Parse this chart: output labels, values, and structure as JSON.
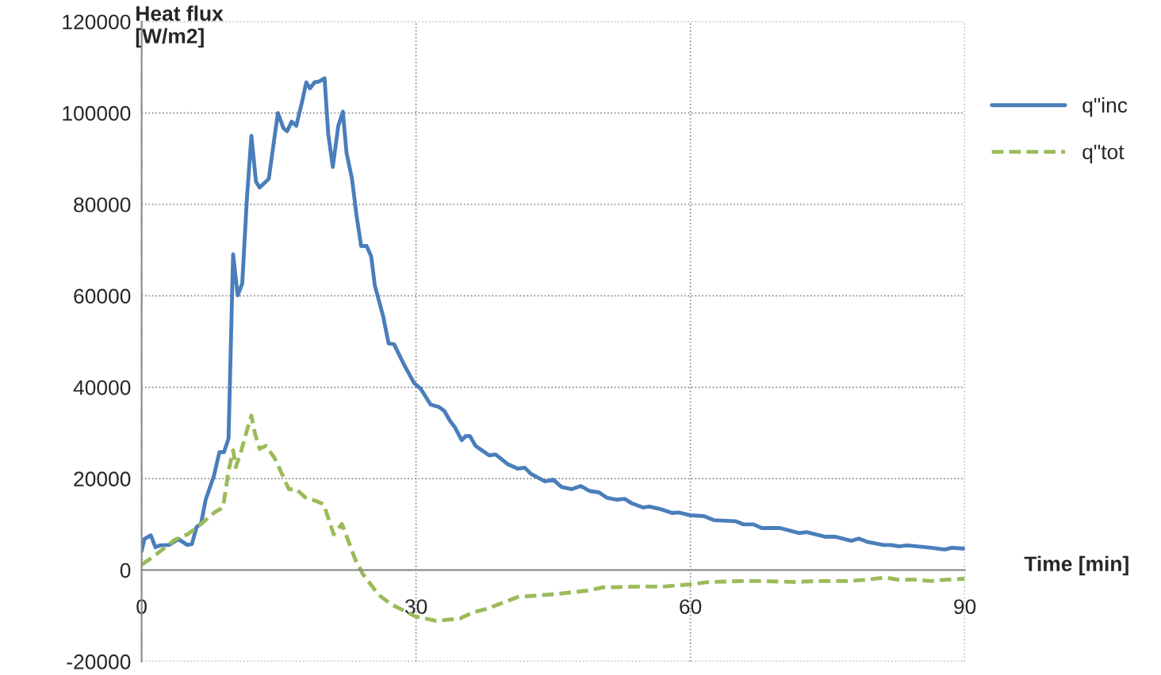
{
  "chart_data": {
    "type": "line",
    "xlabel": "Time [min]",
    "ylabel": "Heat flux\n[W/m2]",
    "xlim": [
      0,
      90
    ],
    "xticks": [
      0,
      30,
      60,
      90
    ],
    "ylim": [
      -20000,
      120000
    ],
    "yticks": [
      -20000,
      0,
      20000,
      40000,
      60000,
      80000,
      100000,
      120000
    ],
    "grid": true,
    "legend": "right",
    "marker": "none",
    "series": [
      {
        "name": "q\"inc",
        "color": "#4a7ebb",
        "line_style": "solid",
        "x": [
          0,
          0.3,
          1.0,
          1.5,
          2.0,
          3.0,
          4.0,
          5.0,
          5.5,
          6.0,
          6.5,
          7.0,
          7.9,
          8.5,
          9.0,
          9.5,
          10.0,
          10.5,
          11.0,
          11.5,
          12.0,
          12.5,
          12.9,
          13.9,
          14.5,
          14.9,
          15.5,
          15.9,
          16.4,
          16.9,
          17.5,
          18.0,
          18.4,
          18.9,
          19.4,
          20.0,
          20.4,
          20.9,
          21.5,
          22.0,
          22.4,
          23.0,
          23.5,
          24.0,
          24.6,
          25.1,
          25.5,
          26.4,
          27.0,
          27.6,
          28.7,
          29.8,
          30.5,
          31.6,
          32.5,
          33.1,
          33.7,
          34.2,
          35.0,
          35.4,
          35.9,
          36.5,
          38.0,
          38.7,
          40.0,
          41.1,
          41.9,
          42.6,
          44.1,
          45.0,
          45.9,
          47.0,
          48.0,
          49.0,
          50.0,
          50.9,
          51.9,
          52.8,
          53.6,
          54.8,
          55.5,
          56.8,
          58.0,
          58.7,
          60.0,
          61.5,
          62.6,
          64.9,
          65.8,
          66.9,
          67.8,
          69.8,
          71.9,
          72.7,
          74.7,
          75.8,
          77.6,
          78.4,
          79.3,
          81.1,
          81.9,
          82.8,
          83.7,
          86.3,
          87.8,
          88.6,
          90.0
        ],
        "values": [
          4200,
          6800,
          7600,
          5000,
          5400,
          5500,
          6800,
          5500,
          5700,
          9400,
          10200,
          15400,
          20600,
          25800,
          25800,
          28800,
          69100,
          60100,
          62700,
          81000,
          95000,
          85000,
          83700,
          85600,
          94300,
          100000,
          96700,
          96000,
          98100,
          97200,
          102100,
          106700,
          105400,
          106700,
          106900,
          107600,
          95500,
          88200,
          97200,
          100300,
          91300,
          85600,
          77500,
          70900,
          70900,
          68600,
          62200,
          55600,
          49600,
          49400,
          44900,
          40900,
          39700,
          36200,
          35700,
          34800,
          32700,
          31400,
          28400,
          29300,
          29300,
          27200,
          25100,
          25300,
          23200,
          22200,
          22400,
          21000,
          19400,
          19800,
          18200,
          17700,
          18400,
          17300,
          17000,
          15800,
          15400,
          15600,
          14600,
          13700,
          13900,
          13300,
          12500,
          12600,
          12000,
          11800,
          10900,
          10700,
          10000,
          10000,
          9200,
          9200,
          8100,
          8300,
          7300,
          7300,
          6400,
          6900,
          6200,
          5500,
          5500,
          5200,
          5400,
          4900,
          4500,
          4900,
          4700
        ]
      },
      {
        "name": "q\"tot",
        "color": "#9bbb59",
        "line_style": "dashed",
        "x": [
          0,
          1.4,
          3.6,
          5.0,
          6.5,
          8.0,
          8.9,
          9.5,
          10.0,
          10.3,
          10.9,
          11.5,
          12.0,
          12.4,
          12.9,
          13.6,
          14.6,
          16.1,
          16.9,
          17.9,
          19.1,
          19.9,
          21.0,
          21.9,
          23.4,
          24.2,
          25.9,
          27.3,
          29.9,
          32.2,
          34.8,
          36.3,
          37.7,
          41.1,
          45.5,
          48.7,
          50.4,
          54.5,
          57.1,
          60.0,
          62.0,
          65.8,
          67.8,
          71.5,
          73.6,
          77.1,
          79.3,
          81.4,
          82.6,
          84.5,
          86.3,
          88.0,
          90.0
        ],
        "values": [
          1200,
          3100,
          6600,
          7800,
          10100,
          12700,
          13700,
          21700,
          26200,
          22500,
          26200,
          30500,
          33800,
          29800,
          26500,
          27200,
          24300,
          17700,
          17700,
          15900,
          15100,
          14400,
          7800,
          10100,
          2100,
          -900,
          -5400,
          -7500,
          -10100,
          -11100,
          -10600,
          -9200,
          -8500,
          -5900,
          -5200,
          -4500,
          -3800,
          -3600,
          -3600,
          -3100,
          -2600,
          -2400,
          -2400,
          -2600,
          -2400,
          -2400,
          -2100,
          -1600,
          -2100,
          -2100,
          -2400,
          -2100,
          -1900
        ]
      }
    ]
  }
}
